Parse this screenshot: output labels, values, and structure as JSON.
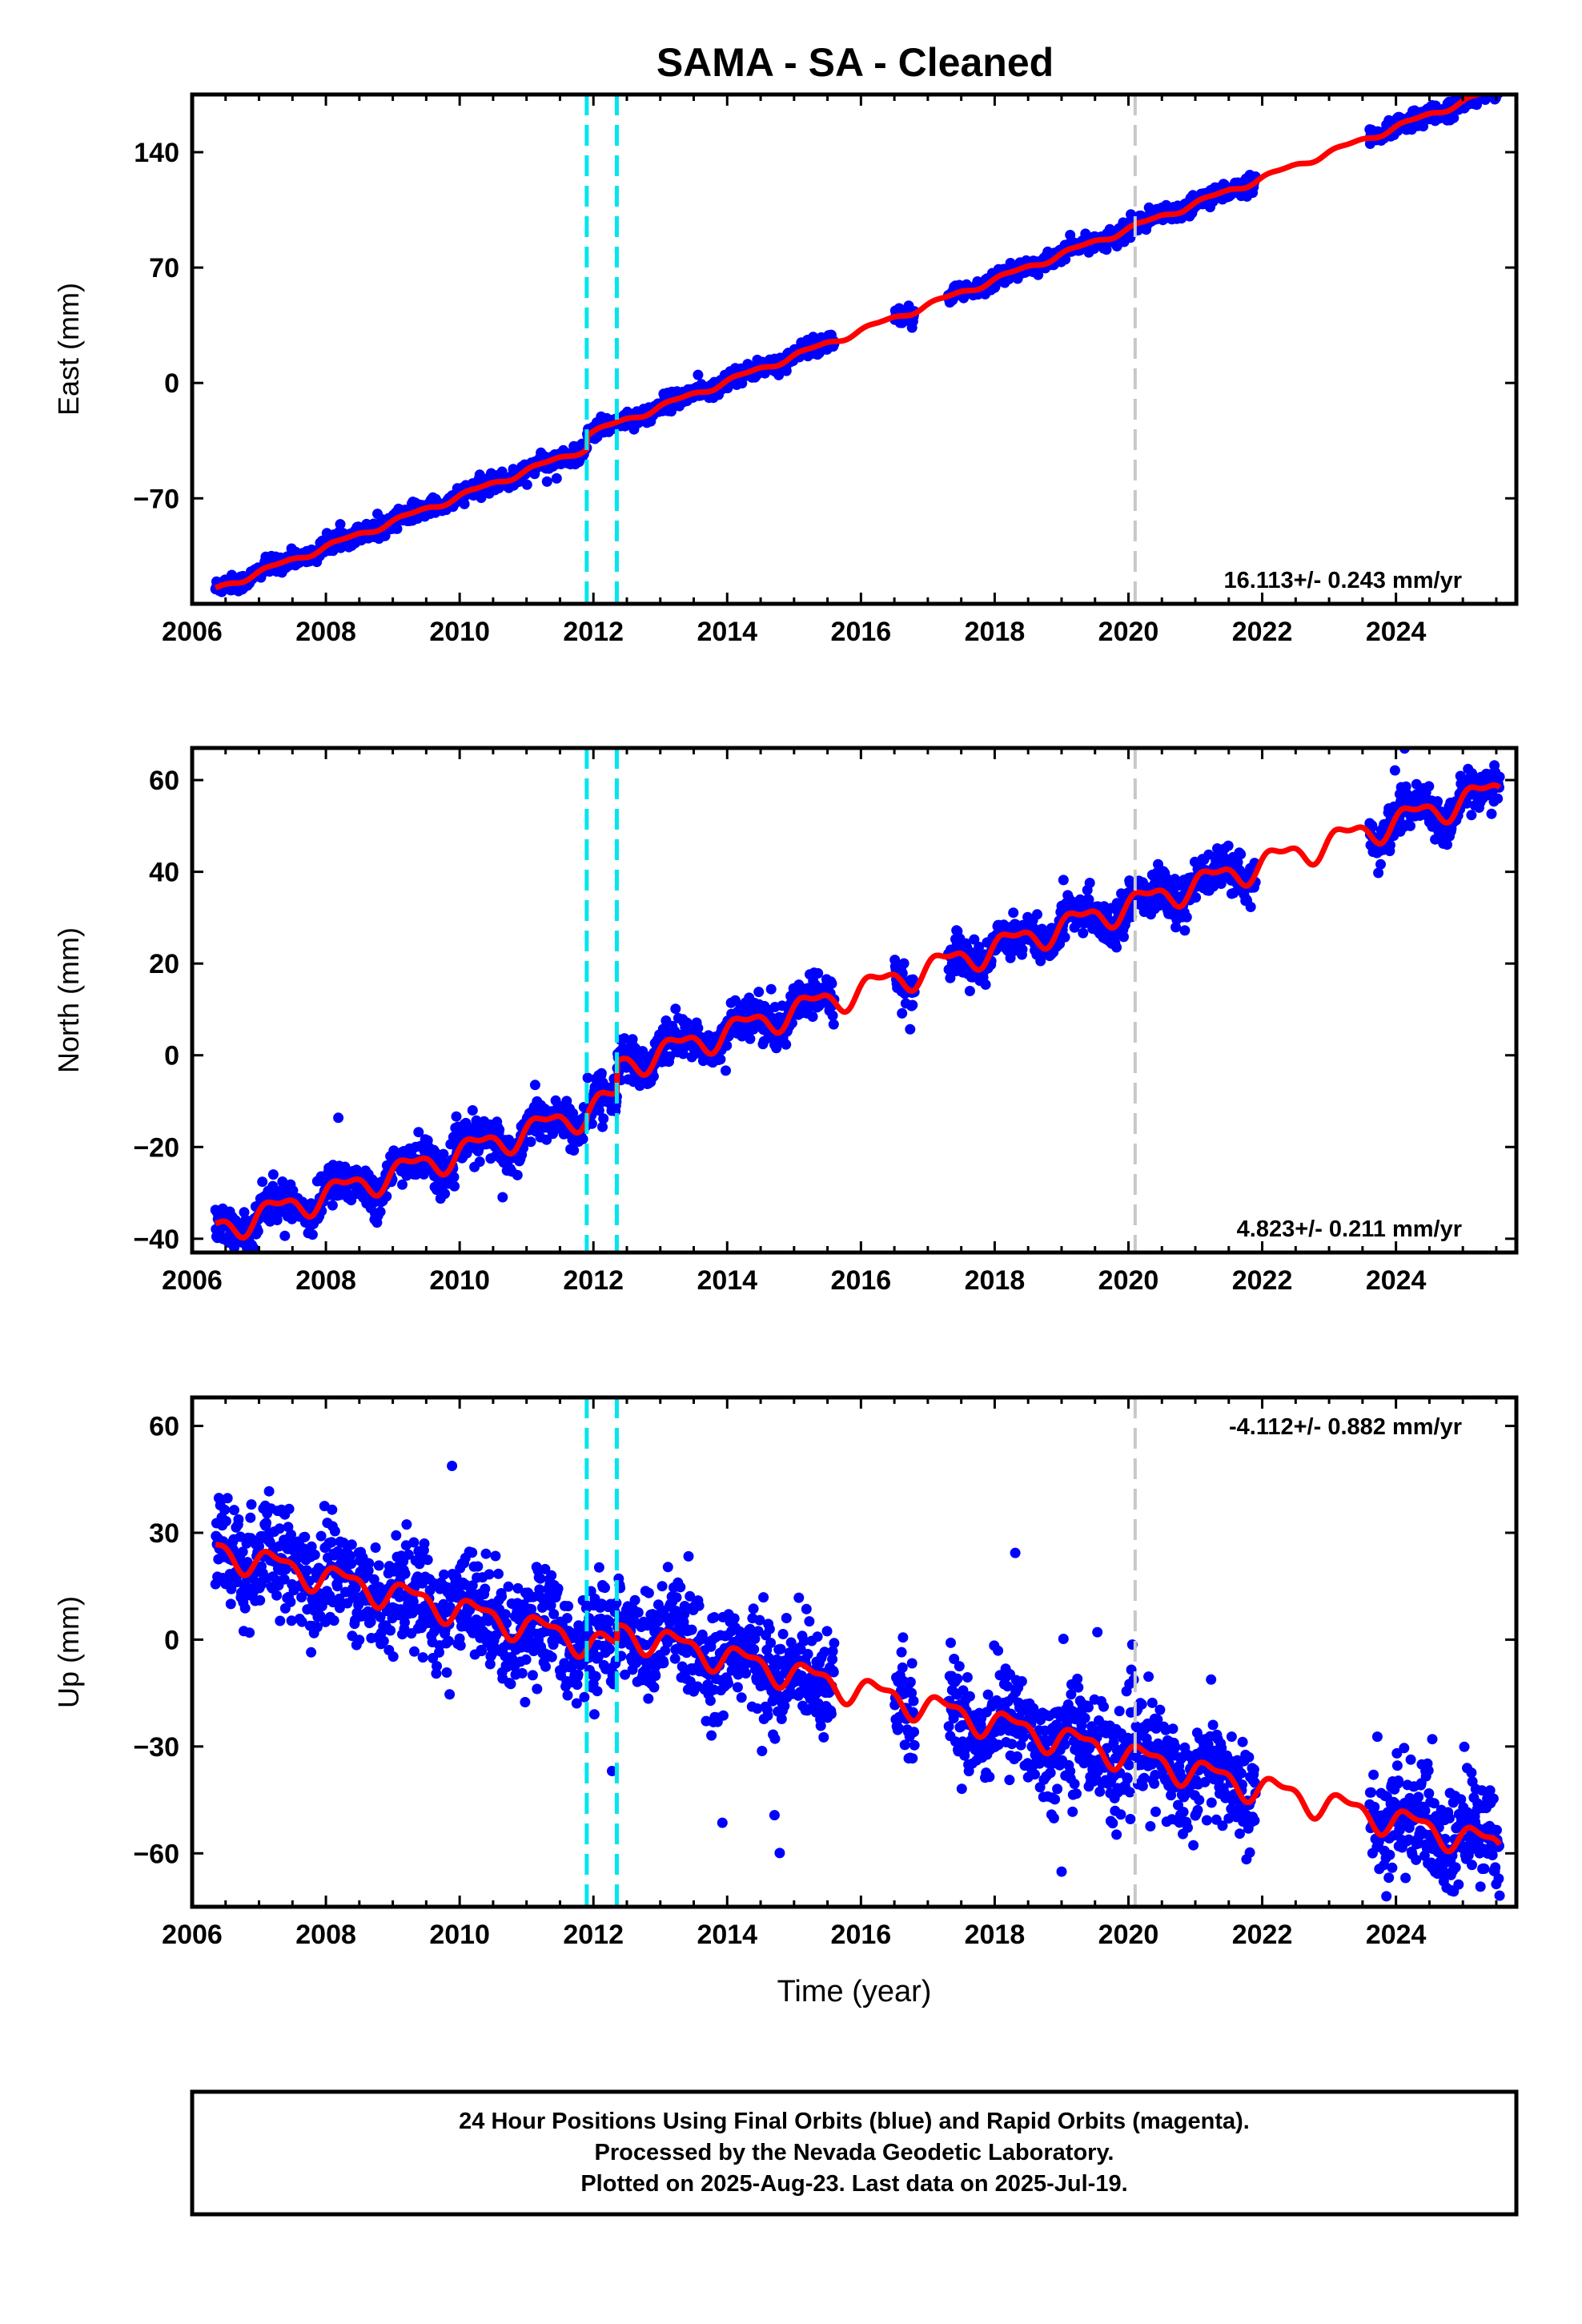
{
  "title": "SAMA  - SA - Cleaned",
  "colors": {
    "data": "#0000ff",
    "model": "#ff0000",
    "offset_line": "#00e5ee",
    "gap_line": "#c8c8c8",
    "axis": "#000000"
  },
  "footer": {
    "lines": [
      "24 Hour Positions Using Final Orbits (blue) and Rapid Orbits (magenta).",
      "Processed by the Nevada Geodetic Laboratory.",
      "Plotted on 2025-Aug-23. Last data on 2025-Jul-19."
    ]
  },
  "chart_data": [
    {
      "type": "scatter",
      "ylabel": "East (mm)",
      "xlim": [
        2006,
        2025.8
      ],
      "ylim": [
        -134,
        175
      ],
      "x_ticks": [
        2006,
        2008,
        2010,
        2012,
        2014,
        2016,
        2018,
        2020,
        2022,
        2024
      ],
      "y_ticks": [
        -70,
        0,
        70,
        140
      ],
      "x_tick_labels": [
        "2006",
        "2008",
        "2010",
        "2012",
        "2014",
        "2016",
        "2018",
        "2020",
        "2022",
        "2024"
      ],
      "y_tick_labels": [
        "−70",
        "0",
        "70",
        "140"
      ],
      "rate_label": "16.113+/- 0.243 mm/yr",
      "rate_position": "bottom-right",
      "start_value": -125,
      "end_value": 179,
      "seasonal_amp": 1.5,
      "noise": 2.5,
      "outlier_rate": 0.003,
      "offsets": [
        {
          "x": 2011.9,
          "dy": 8
        },
        {
          "x": 2012.35,
          "dy": 0
        }
      ],
      "data_gaps": [
        [
          2015.6,
          2016.5
        ],
        [
          2016.8,
          2017.3
        ],
        [
          2021.9,
          2023.6
        ]
      ],
      "cyan_lines": [
        2011.9,
        2012.35
      ],
      "gray_line": 2020.1
    },
    {
      "type": "scatter",
      "ylabel": "North (mm)",
      "xlim": [
        2006,
        2025.8
      ],
      "ylim": [
        -43,
        67
      ],
      "x_ticks": [
        2006,
        2008,
        2010,
        2012,
        2014,
        2016,
        2018,
        2020,
        2022,
        2024
      ],
      "y_ticks": [
        -40,
        -20,
        0,
        20,
        40,
        60
      ],
      "x_tick_labels": [
        "2006",
        "2008",
        "2010",
        "2012",
        "2014",
        "2016",
        "2018",
        "2020",
        "2022",
        "2024"
      ],
      "y_tick_labels": [
        "−40",
        "−20",
        "0",
        "20",
        "40",
        "60"
      ],
      "rate_label": "4.823+/- 0.211 mm/yr",
      "rate_position": "bottom-right",
      "start_value": -38,
      "end_value": 58,
      "seasonal_amp": 2.6,
      "noise": 2.2,
      "outlier_rate": 0.004,
      "offsets": [
        {
          "x": 2011.9,
          "dy": 1
        },
        {
          "x": 2012.35,
          "dy": 7
        }
      ],
      "data_gaps": [
        [
          2015.6,
          2016.5
        ],
        [
          2016.8,
          2017.3
        ],
        [
          2021.9,
          2023.6
        ]
      ],
      "cyan_lines": [
        2011.9,
        2012.35
      ],
      "gray_line": 2020.1
    },
    {
      "type": "scatter",
      "ylabel": "Up (mm)",
      "xlabel": "Time (year)",
      "xlim": [
        2006,
        2025.8
      ],
      "ylim": [
        -75,
        68
      ],
      "x_ticks": [
        2006,
        2008,
        2010,
        2012,
        2014,
        2016,
        2018,
        2020,
        2022,
        2024
      ],
      "y_ticks": [
        -60,
        -30,
        0,
        30,
        60
      ],
      "x_tick_labels": [
        "2006",
        "2008",
        "2010",
        "2012",
        "2014",
        "2016",
        "2018",
        "2020",
        "2022",
        "2024"
      ],
      "y_tick_labels": [
        "−60",
        "−30",
        "0",
        "30",
        "60"
      ],
      "rate_label": "-4.112+/- 0.882 mm/yr",
      "rate_position": "top-right",
      "start_value": 25,
      "end_value": -58,
      "seasonal_amp": 3.5,
      "noise": 7.5,
      "outlier_rate": 0.01,
      "offsets": [
        {
          "x": 2011.9,
          "dy": 0
        },
        {
          "x": 2012.35,
          "dy": 5
        }
      ],
      "data_gaps": [
        [
          2015.6,
          2016.5
        ],
        [
          2016.8,
          2017.3
        ],
        [
          2021.9,
          2023.6
        ]
      ],
      "cyan_lines": [
        2011.9,
        2012.35
      ],
      "gray_line": 2020.1
    }
  ]
}
